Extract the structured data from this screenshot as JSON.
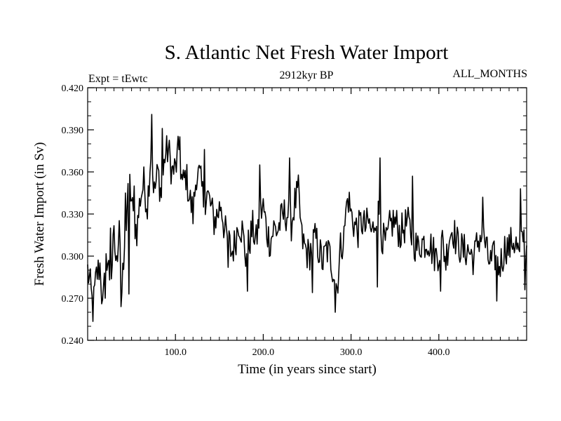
{
  "chart_data": {
    "type": "line",
    "title": "S. Atlantic Net Fresh Water Import",
    "subtitle_left": "Expt = tEwtc",
    "subtitle_center": "2912kyr BP",
    "subtitle_right": "ALL_MONTHS",
    "xlabel": "Time (in years since start)",
    "ylabel": "Fresh Water Import (in Sv)",
    "xlim": [
      0,
      500
    ],
    "ylim": [
      0.24,
      0.42
    ],
    "x_ticks": [
      100,
      200,
      300,
      400
    ],
    "x_tick_labels": [
      "100.0",
      "200.0",
      "300.0",
      "400.0"
    ],
    "y_ticks": [
      0.24,
      0.27,
      0.3,
      0.33,
      0.36,
      0.39,
      0.42
    ],
    "y_tick_labels": [
      "0.240",
      "0.270",
      "0.300",
      "0.330",
      "0.360",
      "0.390",
      "0.420"
    ],
    "grid": false,
    "series": [
      {
        "name": "Net Fresh Water Import",
        "color": "#000000",
        "anchors_x": [
          0,
          3,
          6,
          10,
          14,
          18,
          22,
          26,
          30,
          33,
          36,
          39,
          42,
          45,
          48,
          52,
          56,
          60,
          64,
          68,
          72,
          76,
          80,
          84,
          88,
          92,
          96,
          100,
          104,
          108,
          112,
          116,
          120,
          124,
          128,
          132,
          136,
          140,
          144,
          148,
          152,
          156,
          160,
          164,
          168,
          172,
          176,
          180,
          184,
          188,
          192,
          196,
          200,
          204,
          208,
          212,
          216,
          220,
          224,
          228,
          232,
          236,
          240,
          244,
          248,
          252,
          256,
          260,
          264,
          268,
          272,
          276,
          280,
          284,
          288,
          292,
          296,
          300,
          304,
          308,
          312,
          316,
          320,
          324,
          328,
          332,
          336,
          340,
          344,
          348,
          352,
          356,
          360,
          364,
          368,
          372,
          376,
          380,
          384,
          388,
          392,
          396,
          400,
          404,
          408,
          412,
          416,
          420,
          424,
          428,
          432,
          436,
          440,
          444,
          448,
          452,
          456,
          460,
          464,
          468,
          472,
          476,
          480,
          484,
          488,
          492,
          496,
          500
        ],
        "anchors_y": [
          0.29,
          0.278,
          0.262,
          0.286,
          0.293,
          0.271,
          0.3,
          0.282,
          0.312,
          0.292,
          0.33,
          0.274,
          0.3,
          0.338,
          0.35,
          0.327,
          0.318,
          0.342,
          0.352,
          0.336,
          0.375,
          0.345,
          0.36,
          0.343,
          0.372,
          0.376,
          0.36,
          0.362,
          0.376,
          0.35,
          0.358,
          0.342,
          0.33,
          0.36,
          0.355,
          0.34,
          0.345,
          0.336,
          0.325,
          0.33,
          0.338,
          0.318,
          0.312,
          0.302,
          0.31,
          0.325,
          0.318,
          0.3,
          0.31,
          0.32,
          0.31,
          0.33,
          0.335,
          0.318,
          0.31,
          0.32,
          0.318,
          0.325,
          0.33,
          0.33,
          0.323,
          0.338,
          0.345,
          0.312,
          0.305,
          0.3,
          0.31,
          0.312,
          0.303,
          0.295,
          0.305,
          0.3,
          0.29,
          0.278,
          0.306,
          0.314,
          0.345,
          0.33,
          0.322,
          0.318,
          0.325,
          0.32,
          0.324,
          0.315,
          0.33,
          0.33,
          0.312,
          0.308,
          0.32,
          0.325,
          0.322,
          0.316,
          0.32,
          0.324,
          0.317,
          0.31,
          0.305,
          0.31,
          0.31,
          0.312,
          0.305,
          0.3,
          0.303,
          0.31,
          0.297,
          0.315,
          0.32,
          0.31,
          0.307,
          0.303,
          0.305,
          0.302,
          0.298,
          0.31,
          0.315,
          0.312,
          0.298,
          0.295,
          0.3,
          0.292,
          0.298,
          0.308,
          0.305,
          0.312,
          0.308,
          0.298,
          0.315,
          0.305
        ],
        "spikes": [
          [
            16,
            0.266
          ],
          [
            20,
            0.27
          ],
          [
            26,
            0.32
          ],
          [
            38,
            0.264
          ],
          [
            43,
            0.345
          ],
          [
            47,
            0.273
          ],
          [
            53,
            0.35
          ],
          [
            73,
            0.401
          ],
          [
            85,
            0.391
          ],
          [
            105,
            0.385
          ],
          [
            133,
            0.376
          ],
          [
            160,
            0.292
          ],
          [
            182,
            0.275
          ],
          [
            196,
            0.365
          ],
          [
            230,
            0.37
          ],
          [
            256,
            0.274
          ],
          [
            282,
            0.26
          ],
          [
            296,
            0.341
          ],
          [
            333,
            0.37
          ],
          [
            330,
            0.278
          ],
          [
            370,
            0.357
          ],
          [
            402,
            0.275
          ],
          [
            450,
            0.342
          ],
          [
            466,
            0.268
          ],
          [
            493,
            0.348
          ],
          [
            498,
            0.276
          ]
        ]
      }
    ]
  }
}
